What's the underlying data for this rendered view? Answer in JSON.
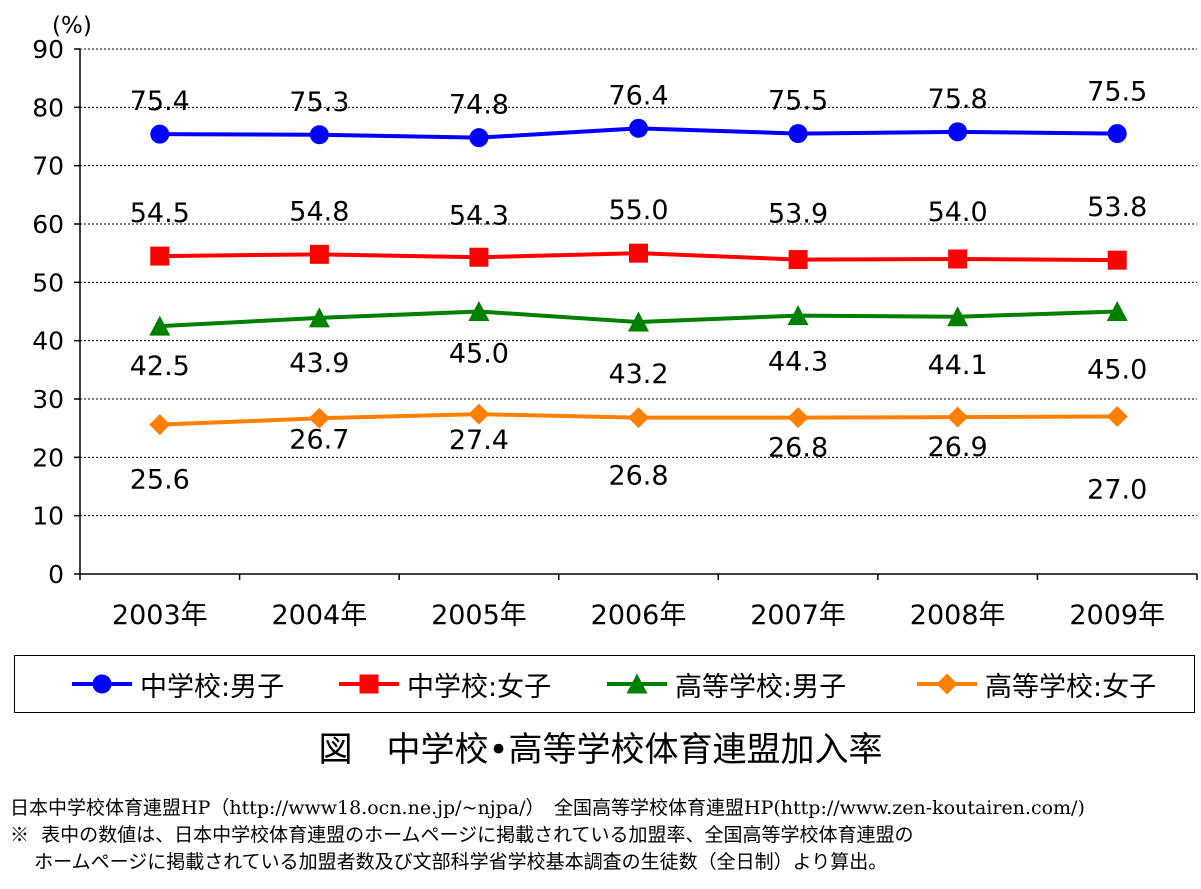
{
  "chart_data": {
    "type": "line",
    "unit_label": "(%)",
    "categories": [
      "2003年",
      "2004年",
      "2005年",
      "2006年",
      "2007年",
      "2008年",
      "2009年"
    ],
    "ylim": [
      0,
      90
    ],
    "yticks": [
      "0",
      "10",
      "20",
      "30",
      "40",
      "50",
      "60",
      "70",
      "80",
      "90"
    ],
    "grid": true,
    "legend_position": "bottom",
    "series": [
      {
        "name": "中学校:男子",
        "color": "#0000ff",
        "marker": "circle",
        "values": [
          75.4,
          75.3,
          74.8,
          76.4,
          75.5,
          75.8,
          75.5
        ],
        "labels": [
          "75.4",
          "75.3",
          "74.8",
          "76.4",
          "75.5",
          "75.8",
          "75.5"
        ]
      },
      {
        "name": "中学校:女子",
        "color": "#ff0000",
        "marker": "square",
        "values": [
          54.5,
          54.8,
          54.3,
          55.0,
          53.9,
          54.0,
          53.8
        ],
        "labels": [
          "54.5",
          "54.8",
          "54.3",
          "55.0",
          "53.9",
          "54.0",
          "53.8"
        ]
      },
      {
        "name": "高等学校:男子",
        "color": "#008000",
        "marker": "triangle",
        "values": [
          42.5,
          43.9,
          45.0,
          43.2,
          44.3,
          44.1,
          45.0
        ],
        "labels": [
          "42.5",
          "43.9",
          "45.0",
          "43.2",
          "44.3",
          "44.1",
          "45.0"
        ]
      },
      {
        "name": "高等学校:女子",
        "color": "#ff8000",
        "marker": "diamond",
        "values": [
          25.6,
          26.7,
          27.4,
          26.8,
          26.8,
          26.9,
          27.0
        ],
        "labels": [
          "25.6",
          "26.7",
          "27.4",
          "26.8",
          "26.8",
          "26.9",
          "27.0"
        ]
      }
    ]
  },
  "figure_title": "図　中学校•高等学校体育連盟加入率",
  "notes": {
    "source": "日本中学校体育連盟HP（http://www18.ocn.ne.jp/~njpa/）　全国高等学校体育連盟HP(http://www.zen-koutairen.com/)",
    "remark_line1": "※  表中の数値は、日本中学校体育連盟のホームページに掲載されている加盟率、全国高等学校体育連盟の",
    "remark_line2": "    ホームページに掲載されている加盟者数及び文部科学省学校基本調査の生徒数（全日制）より算出。"
  }
}
